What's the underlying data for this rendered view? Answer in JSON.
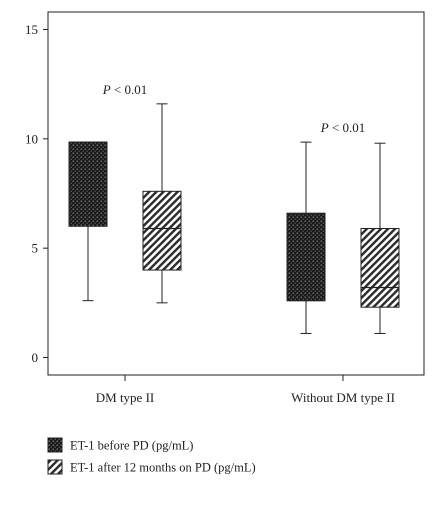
{
  "chart_data": {
    "type": "box",
    "categories": [
      "DM type II",
      "Without DM type II"
    ],
    "ylim": [
      -0.8,
      15.8
    ],
    "yticks": [
      "0",
      "5",
      "10",
      "15"
    ],
    "grid": false,
    "legend_position": "bottom",
    "series": [
      {
        "name": "ET-1 before PD (pg/mL)",
        "pattern": "dots",
        "boxes": [
          {
            "min": 2.6,
            "q1": 6.0,
            "median": 9.85,
            "q3": 9.85,
            "max": 9.85
          },
          {
            "min": 1.1,
            "q1": 2.6,
            "median": 2.6,
            "q3": 6.6,
            "max": 9.85
          }
        ]
      },
      {
        "name": "ET-1 after 12 months on PD (pg/mL)",
        "pattern": "hatch",
        "boxes": [
          {
            "min": 2.5,
            "q1": 4.0,
            "median": 5.9,
            "q3": 7.6,
            "max": 11.6
          },
          {
            "min": 1.1,
            "q1": 2.3,
            "median": 3.2,
            "q3": 5.9,
            "max": 9.8
          }
        ]
      }
    ],
    "annotations": [
      {
        "italic": "P",
        "rest": " < 0.01",
        "category": 0
      },
      {
        "italic": "P",
        "rest": " < 0.01",
        "category": 1
      }
    ]
  }
}
